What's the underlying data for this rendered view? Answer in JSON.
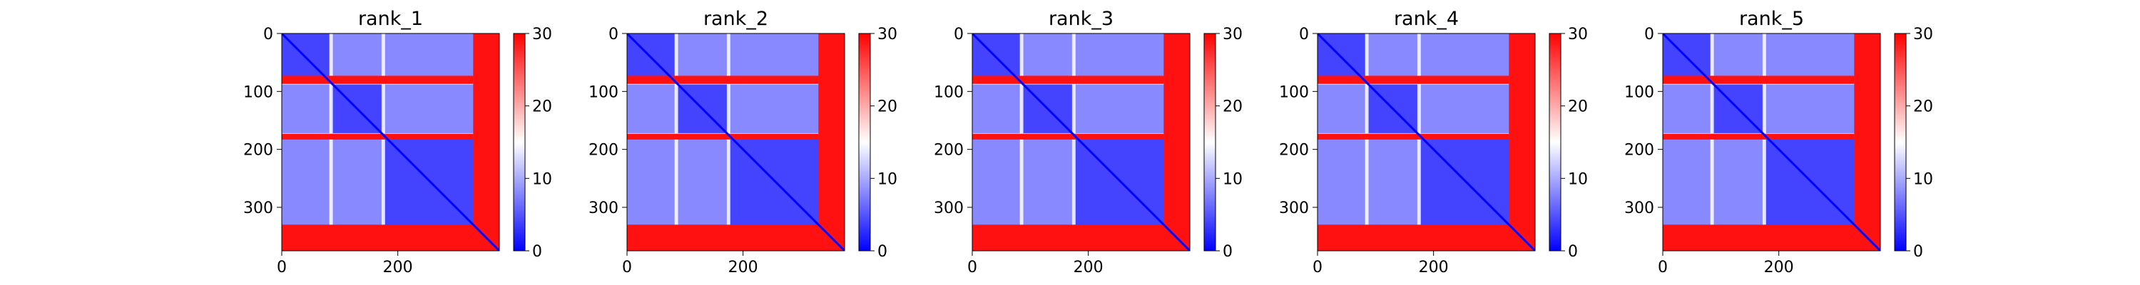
{
  "figure": {
    "background": "#ffffff"
  },
  "colormap": {
    "name": "bwr",
    "low": "#0000ff",
    "mid": "#ffffff",
    "high": "#ff0000"
  },
  "chart_data": [
    {
      "type": "heatmap",
      "title": "rank_1",
      "size": 375,
      "blocks": [
        [
          0,
          85
        ],
        [
          85,
          175
        ],
        [
          175,
          330
        ],
        [
          330,
          375
        ]
      ],
      "domain_pairs": [
        [
          0,
          1
        ],
        [
          0,
          2
        ],
        [
          1,
          2
        ],
        [
          0,
          0
        ],
        [
          1,
          1
        ],
        [
          2,
          2
        ]
      ],
      "values": {
        "intra_domain": 4,
        "inter_domain": 8,
        "gap": 15,
        "c_tail": 29,
        "diagonal": 0
      },
      "x_ticks": [
        0,
        200
      ],
      "y_ticks": [
        0,
        100,
        200,
        300
      ],
      "xlim": [
        0,
        375
      ],
      "ylim": [
        375,
        0
      ],
      "colorbar": {
        "vmin": 0,
        "vmax": 30,
        "ticks": [
          0,
          10,
          20,
          30
        ]
      }
    },
    {
      "type": "heatmap",
      "title": "rank_2",
      "size": 375,
      "blocks": [
        [
          0,
          85
        ],
        [
          85,
          175
        ],
        [
          175,
          330
        ],
        [
          330,
          375
        ]
      ],
      "domain_pairs": [
        [
          0,
          1
        ],
        [
          0,
          2
        ],
        [
          1,
          2
        ],
        [
          0,
          0
        ],
        [
          1,
          1
        ],
        [
          2,
          2
        ]
      ],
      "values": {
        "intra_domain": 4,
        "inter_domain": 8,
        "gap": 15,
        "c_tail": 29,
        "diagonal": 0
      },
      "x_ticks": [
        0,
        200
      ],
      "y_ticks": [
        0,
        100,
        200,
        300
      ],
      "xlim": [
        0,
        375
      ],
      "ylim": [
        375,
        0
      ],
      "colorbar": {
        "vmin": 0,
        "vmax": 30,
        "ticks": [
          0,
          10,
          20,
          30
        ]
      }
    },
    {
      "type": "heatmap",
      "title": "rank_3",
      "size": 375,
      "blocks": [
        [
          0,
          85
        ],
        [
          85,
          175
        ],
        [
          175,
          330
        ],
        [
          330,
          375
        ]
      ],
      "domain_pairs": [
        [
          0,
          1
        ],
        [
          0,
          2
        ],
        [
          1,
          2
        ],
        [
          0,
          0
        ],
        [
          1,
          1
        ],
        [
          2,
          2
        ]
      ],
      "values": {
        "intra_domain": 4,
        "inter_domain": 8,
        "gap": 15,
        "c_tail": 29,
        "diagonal": 0
      },
      "x_ticks": [
        0,
        200
      ],
      "y_ticks": [
        0,
        100,
        200,
        300
      ],
      "xlim": [
        0,
        375
      ],
      "ylim": [
        375,
        0
      ],
      "colorbar": {
        "vmin": 0,
        "vmax": 30,
        "ticks": [
          0,
          10,
          20,
          30
        ]
      }
    },
    {
      "type": "heatmap",
      "title": "rank_4",
      "size": 375,
      "blocks": [
        [
          0,
          85
        ],
        [
          85,
          175
        ],
        [
          175,
          330
        ],
        [
          330,
          375
        ]
      ],
      "domain_pairs": [
        [
          0,
          1
        ],
        [
          0,
          2
        ],
        [
          1,
          2
        ],
        [
          0,
          0
        ],
        [
          1,
          1
        ],
        [
          2,
          2
        ]
      ],
      "values": {
        "intra_domain": 4,
        "inter_domain": 8,
        "gap": 15,
        "c_tail": 29,
        "diagonal": 0
      },
      "x_ticks": [
        0,
        200
      ],
      "y_ticks": [
        0,
        100,
        200,
        300
      ],
      "xlim": [
        0,
        375
      ],
      "ylim": [
        375,
        0
      ],
      "colorbar": {
        "vmin": 0,
        "vmax": 30,
        "ticks": [
          0,
          10,
          20,
          30
        ]
      }
    },
    {
      "type": "heatmap",
      "title": "rank_5",
      "size": 375,
      "blocks": [
        [
          0,
          85
        ],
        [
          85,
          175
        ],
        [
          175,
          330
        ],
        [
          330,
          375
        ]
      ],
      "domain_pairs": [
        [
          0,
          1
        ],
        [
          0,
          2
        ],
        [
          1,
          2
        ],
        [
          0,
          0
        ],
        [
          1,
          1
        ],
        [
          2,
          2
        ]
      ],
      "values": {
        "intra_domain": 4,
        "inter_domain": 8,
        "gap": 15,
        "c_tail": 29,
        "diagonal": 0
      },
      "x_ticks": [
        0,
        200
      ],
      "y_ticks": [
        0,
        100,
        200,
        300
      ],
      "xlim": [
        0,
        375
      ],
      "ylim": [
        375,
        0
      ],
      "colorbar": {
        "vmin": 0,
        "vmax": 30,
        "ticks": [
          0,
          10,
          20,
          30
        ]
      }
    }
  ]
}
